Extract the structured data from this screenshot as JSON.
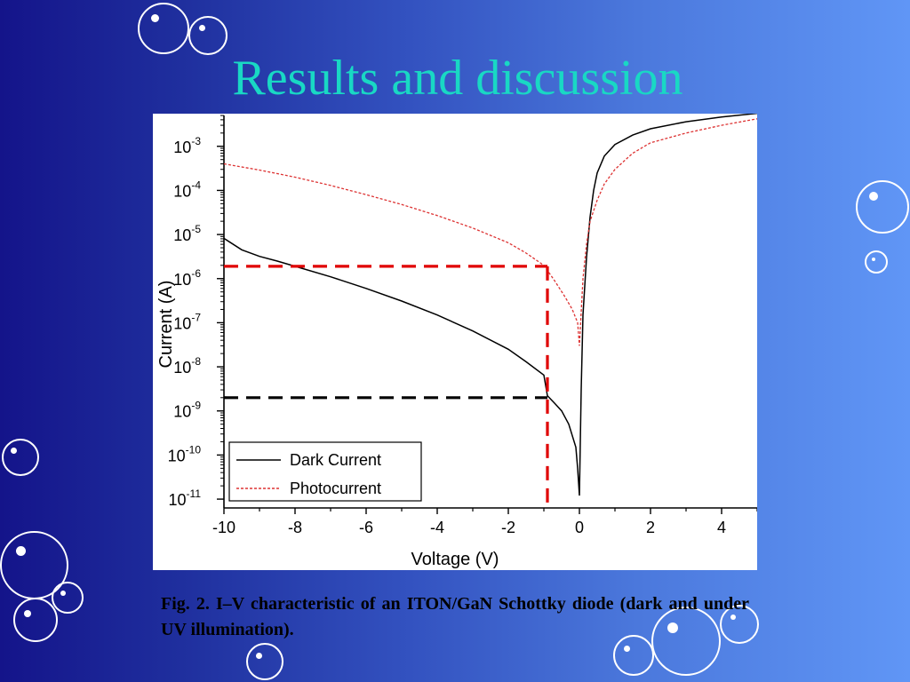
{
  "slide": {
    "title": "Results and discussion",
    "caption": "Fig. 2. I–V characteristic of an ITON/GaN Schottky diode (dark and under UV illumination).",
    "title_color": "#19d8c4"
  },
  "chart_data": {
    "type": "line",
    "xlabel": "Voltage (V)",
    "ylabel": "Current (A)",
    "xlim": [
      -10,
      5
    ],
    "ylim_exponent": [
      -11.2,
      -2.3
    ],
    "y_scale": "log",
    "x_ticks": [
      -10,
      -8,
      -6,
      -4,
      -2,
      0,
      2,
      4
    ],
    "x_tick_labels": [
      "-10",
      "-8",
      "-6",
      "-4",
      "-2",
      "0",
      "2",
      "4"
    ],
    "y_tick_exponents": [
      -11,
      -10,
      -9,
      -8,
      -7,
      -6,
      -5,
      -4,
      -3
    ],
    "y_tick_base": "10",
    "grid": false,
    "legend_position": "bottom-left",
    "series": [
      {
        "name": "Dark Current",
        "color": "#000000",
        "style": "solid",
        "points": [
          [
            -10,
            8.2e-06
          ],
          [
            -9.5,
            4.5e-06
          ],
          [
            -9,
            3.2e-06
          ],
          [
            -8.5,
            2.5e-06
          ],
          [
            -8,
            1.9e-06
          ],
          [
            -7,
            1.1e-06
          ],
          [
            -6,
            6e-07
          ],
          [
            -5,
            3.1e-07
          ],
          [
            -4,
            1.5e-07
          ],
          [
            -3,
            6.5e-08
          ],
          [
            -2,
            2.5e-08
          ],
          [
            -1.5,
            1.3e-08
          ],
          [
            -1,
            6.5e-09
          ],
          [
            -0.9,
            2.2e-09
          ],
          [
            -0.7,
            1.5e-09
          ],
          [
            -0.5,
            1e-09
          ],
          [
            -0.3,
            5e-10
          ],
          [
            -0.1,
            1.5e-10
          ],
          [
            -0.05,
            5e-11
          ],
          [
            0,
            1.2e-11
          ],
          [
            0.05,
            3e-09
          ],
          [
            0.1,
            1.5e-07
          ],
          [
            0.2,
            3e-06
          ],
          [
            0.3,
            2.5e-05
          ],
          [
            0.4,
            0.0001
          ],
          [
            0.5,
            0.00025
          ],
          [
            0.7,
            0.0006
          ],
          [
            1,
            0.0011
          ],
          [
            1.5,
            0.0018
          ],
          [
            2,
            0.0025
          ],
          [
            3,
            0.0036
          ],
          [
            4,
            0.0046
          ],
          [
            5,
            0.0056
          ]
        ]
      },
      {
        "name": "Photocurrent",
        "color": "#dd3333",
        "style": "dashed",
        "points": [
          [
            -10,
            0.0004
          ],
          [
            -9,
            0.00029
          ],
          [
            -8,
            0.0002
          ],
          [
            -7,
            0.00013
          ],
          [
            -6,
            8e-05
          ],
          [
            -5,
            4.8e-05
          ],
          [
            -4,
            2.7e-05
          ],
          [
            -3,
            1.4e-05
          ],
          [
            -2,
            6.5e-06
          ],
          [
            -1.5,
            3.8e-06
          ],
          [
            -1,
            2e-06
          ],
          [
            -0.7,
            9e-07
          ],
          [
            -0.4,
            3.8e-07
          ],
          [
            -0.2,
            2e-07
          ],
          [
            -0.05,
            1e-07
          ],
          [
            0,
            3e-08
          ],
          [
            0.1,
            1e-06
          ],
          [
            0.2,
            6e-06
          ],
          [
            0.3,
            2e-05
          ],
          [
            0.5,
            6e-05
          ],
          [
            0.7,
            0.00014
          ],
          [
            1,
            0.0003
          ],
          [
            1.5,
            0.0007
          ],
          [
            2,
            0.0012
          ],
          [
            3,
            0.002
          ],
          [
            4,
            0.003
          ],
          [
            5,
            0.0042
          ]
        ]
      }
    ],
    "annotations": [
      {
        "name": "photocurrent-guide",
        "color": "#e00000",
        "voltage": -0.9,
        "current": 1.9e-06
      },
      {
        "name": "dark-current-guide",
        "color": "#000000",
        "voltage": -0.9,
        "current": 2e-09
      }
    ]
  }
}
